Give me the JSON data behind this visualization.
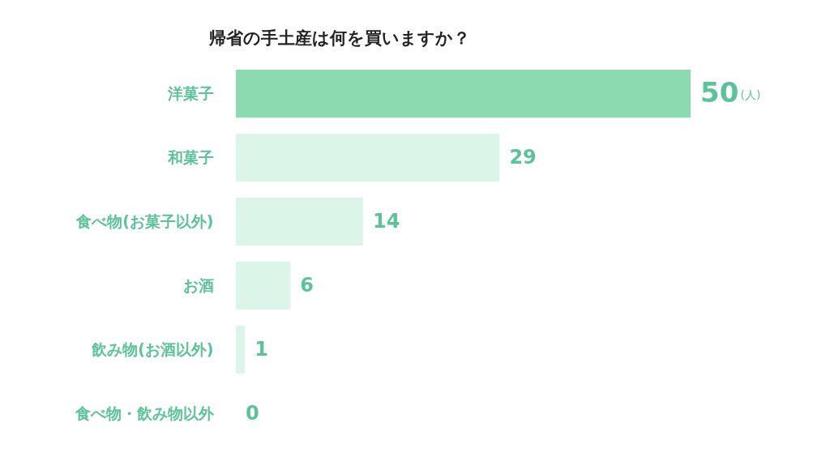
{
  "chart_data": {
    "type": "bar",
    "orientation": "horizontal",
    "title": "帰省の手土産は何を買いますか？",
    "categories": [
      "洋菓子",
      "和菓子",
      "食べ物(お菓子以外)",
      "お酒",
      "飲み物(お酒以外)",
      "食べ物・飲み物以外"
    ],
    "values": [
      50,
      29,
      14,
      6,
      1,
      0
    ],
    "colors": [
      "#8cdbb0",
      "#dcf5e9",
      "#dcf5e9",
      "#dcf5e9",
      "#dcf5e9",
      "#dcf5e9"
    ],
    "data_labels": true,
    "tick_labels": "y",
    "annotations": [
      "(人)"
    ]
  }
}
